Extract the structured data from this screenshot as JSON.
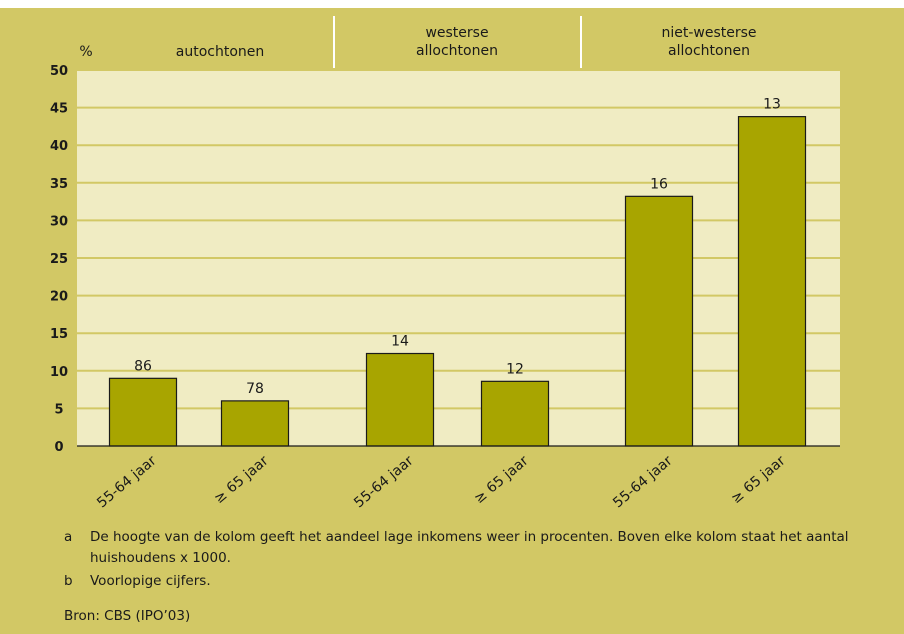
{
  "chart_data": {
    "type": "bar",
    "y_unit_label": "%",
    "ylim": [
      0,
      50
    ],
    "yticks": [
      "0",
      "5",
      "10",
      "15",
      "20",
      "25",
      "30",
      "35",
      "40",
      "45",
      "50"
    ],
    "grid": true,
    "groups": [
      {
        "label": "autochtonen"
      },
      {
        "label": "westerse\nallochtonen"
      },
      {
        "label": "niet-westerse\nallochtonen"
      }
    ],
    "categories": [
      "55-64 jaar",
      "≥ 65 jaar",
      "55-64 jaar",
      "≥ 65 jaar",
      "55-64 jaar",
      "≥ 65 jaar"
    ],
    "values": [
      9,
      6,
      12.3,
      8.6,
      33.2,
      43.8
    ],
    "bar_labels": [
      "86",
      "78",
      "14",
      "12",
      "16",
      "13"
    ],
    "bar_color": "#a8a500",
    "plot_bg": "#f0ecc3",
    "frame_bg": "#d2c865"
  },
  "notes": [
    {
      "letter": "a",
      "text": "De hoogte van de kolom geeft het aandeel lage inkomens weer in procenten. Boven elke kolom staat het aantal huishoudens x 1000."
    },
    {
      "letter": "b",
      "text": "Voorlopige cijfers."
    }
  ],
  "source": "Bron: CBS (IPO’03)"
}
